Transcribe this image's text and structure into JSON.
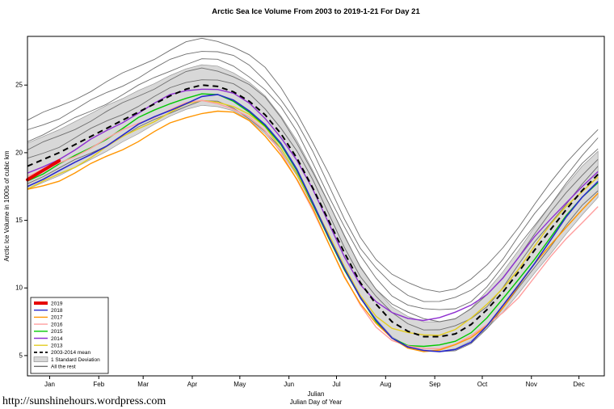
{
  "footer": {
    "url": "http://sunshinehours.wordpress.com"
  },
  "chart_data": {
    "type": "line",
    "title": "Arctic Sea Ice Volume From 2003 to 2019-1-21  For Day 21",
    "ylabel": "Arctic Ice Volume in 1000s of cubic km",
    "xlabel_top": "Julian",
    "xlabel": "Julian Day of Year",
    "xlim": [
      1,
      365
    ],
    "ylim": [
      3.5,
      28.6
    ],
    "yticks": [
      5,
      10,
      15,
      20,
      25
    ],
    "xticks": {
      "days": [
        15,
        46,
        74,
        105,
        135,
        166,
        196,
        227,
        258,
        288,
        319,
        349
      ],
      "labels": [
        "Jan",
        "Feb",
        "Mar",
        "Apr",
        "May",
        "Jun",
        "Jul",
        "Aug",
        "Sep",
        "Oct",
        "Nov",
        "Dec"
      ]
    },
    "days": [
      1,
      11,
      21,
      31,
      41,
      51,
      61,
      71,
      81,
      91,
      101,
      111,
      121,
      131,
      141,
      151,
      161,
      171,
      181,
      191,
      201,
      211,
      221,
      231,
      241,
      251,
      261,
      271,
      281,
      291,
      301,
      311,
      321,
      331,
      341,
      351,
      361
    ],
    "mean_series": {
      "name": "2003-2014 mean",
      "color": "#000000",
      "values": [
        19.0,
        19.5,
        20.0,
        20.6,
        21.2,
        21.8,
        22.4,
        23.0,
        23.6,
        24.2,
        24.7,
        25.0,
        24.9,
        24.5,
        23.8,
        22.8,
        21.4,
        19.6,
        17.4,
        15.0,
        12.6,
        10.4,
        8.8,
        7.5,
        6.8,
        6.4,
        6.4,
        6.6,
        7.3,
        8.4,
        9.7,
        11.2,
        12.8,
        14.3,
        15.8,
        17.2,
        18.4
      ]
    },
    "std_values": [
      1.7,
      1.7,
      1.7,
      1.7,
      1.7,
      1.7,
      1.6,
      1.6,
      1.5,
      1.5,
      1.5,
      1.5,
      1.5,
      1.4,
      1.4,
      1.4,
      1.3,
      1.3,
      1.3,
      1.3,
      1.2,
      1.2,
      1.1,
      1.1,
      1.1,
      1.1,
      1.1,
      1.1,
      1.2,
      1.4,
      1.5,
      1.6,
      1.7,
      1.8,
      1.8,
      1.8,
      1.7
    ],
    "band_label": "1 Standard Deviation",
    "band_color": "#D8D8D8",
    "rest_label": "All the rest",
    "rest_color": "#6E6E6E",
    "rest_series": [
      {
        "values": [
          22.4,
          22.9,
          23.4,
          24.0,
          24.6,
          25.2,
          25.8,
          26.4,
          27.0,
          27.6,
          28.1,
          28.4,
          28.3,
          27.9,
          27.2,
          26.2,
          24.8,
          23.0,
          20.8,
          18.4,
          16.0,
          13.8,
          12.2,
          11.0,
          10.3,
          9.9,
          9.8,
          10.0,
          10.6,
          11.6,
          13.0,
          14.6,
          16.2,
          17.7,
          19.2,
          20.6,
          21.8
        ]
      },
      {
        "values": [
          21.6,
          22.1,
          22.6,
          23.2,
          23.8,
          24.4,
          25.0,
          25.6,
          26.2,
          26.8,
          27.3,
          27.6,
          27.5,
          27.1,
          26.4,
          25.4,
          24.0,
          22.2,
          20.0,
          17.6,
          15.2,
          13.0,
          11.4,
          10.2,
          9.5,
          9.1,
          9.0,
          9.2,
          9.8,
          10.8,
          12.2,
          13.8,
          15.4,
          16.9,
          18.4,
          19.8,
          21.0
        ]
      },
      {
        "values": [
          20.9,
          21.4,
          21.9,
          22.5,
          23.1,
          23.7,
          24.3,
          24.9,
          25.5,
          26.1,
          26.6,
          26.9,
          26.8,
          26.4,
          25.7,
          24.7,
          23.3,
          21.5,
          19.3,
          16.9,
          14.5,
          12.3,
          10.7,
          9.5,
          8.8,
          8.4,
          8.3,
          8.5,
          9.1,
          10.1,
          11.5,
          13.1,
          14.7,
          16.2,
          17.7,
          19.1,
          20.3
        ]
      },
      {
        "values": [
          20.2,
          20.7,
          21.2,
          21.8,
          22.4,
          23.0,
          23.6,
          24.2,
          24.8,
          25.4,
          25.9,
          26.2,
          26.1,
          25.7,
          25.0,
          24.0,
          22.6,
          20.8,
          18.6,
          16.2,
          13.8,
          11.6,
          10.0,
          8.8,
          8.1,
          7.7,
          7.6,
          7.8,
          8.4,
          9.4,
          10.8,
          12.4,
          14.0,
          15.5,
          17.0,
          18.4,
          19.6
        ]
      },
      {
        "values": [
          19.5,
          20.0,
          20.5,
          21.1,
          21.7,
          22.3,
          22.9,
          23.5,
          24.1,
          24.7,
          25.2,
          25.5,
          25.4,
          25.0,
          24.3,
          23.3,
          21.9,
          20.1,
          17.9,
          15.5,
          13.1,
          10.9,
          9.3,
          8.1,
          7.4,
          7.0,
          6.9,
          7.1,
          7.7,
          8.7,
          10.1,
          11.7,
          13.3,
          14.8,
          16.3,
          17.7,
          18.9
        ]
      },
      {
        "values": [
          17.8,
          18.3,
          18.8,
          19.4,
          20.0,
          20.6,
          21.2,
          21.8,
          22.4,
          23.0,
          23.5,
          23.8,
          23.7,
          23.3,
          22.6,
          21.6,
          20.2,
          18.4,
          16.2,
          13.8,
          11.4,
          9.2,
          7.6,
          6.4,
          5.7,
          5.3,
          5.2,
          5.4,
          6.0,
          7.0,
          8.4,
          10.0,
          11.6,
          13.1,
          14.6,
          16.0,
          17.2
        ]
      }
    ],
    "year_series": [
      {
        "name": "2013",
        "color": "#E3CC1F",
        "width": 1.4,
        "values": [
          17.3,
          17.8,
          18.4,
          19.0,
          19.7,
          20.4,
          21.1,
          21.8,
          22.4,
          23.0,
          23.5,
          23.8,
          23.8,
          23.5,
          22.8,
          21.8,
          20.3,
          18.5,
          16.3,
          13.9,
          11.5,
          9.5,
          8.0,
          7.0,
          6.6,
          6.5,
          6.6,
          7.0,
          7.7,
          8.7,
          10.0,
          11.5,
          13.1,
          14.6,
          16.0,
          17.2,
          18.3
        ]
      },
      {
        "name": "2014",
        "color": "#8F2FD1",
        "width": 1.4,
        "values": [
          18.4,
          19.0,
          19.6,
          20.2,
          20.9,
          21.6,
          22.3,
          23.0,
          23.6,
          24.2,
          24.6,
          24.8,
          24.7,
          24.3,
          23.6,
          22.6,
          21.2,
          19.4,
          17.2,
          14.8,
          12.4,
          10.3,
          8.9,
          8.1,
          7.8,
          7.7,
          7.8,
          8.1,
          8.7,
          9.6,
          10.8,
          12.2,
          13.7,
          15.1,
          16.4,
          17.5,
          18.5
        ]
      },
      {
        "name": "2015",
        "color": "#00C800",
        "width": 1.4,
        "values": [
          18.0,
          18.5,
          19.1,
          19.7,
          20.4,
          21.1,
          21.8,
          22.5,
          23.1,
          23.7,
          24.1,
          24.3,
          24.2,
          23.8,
          23.1,
          22.0,
          20.5,
          18.6,
          16.3,
          13.8,
          11.3,
          9.2,
          7.5,
          6.4,
          5.8,
          5.6,
          5.7,
          6.1,
          6.8,
          7.8,
          9.1,
          10.6,
          12.2,
          13.8,
          15.3,
          16.6,
          17.8
        ]
      },
      {
        "name": "2016",
        "color": "#FF9E9E",
        "width": 1.4,
        "values": [
          18.2,
          18.7,
          19.2,
          19.8,
          20.4,
          21.0,
          21.6,
          22.2,
          22.7,
          23.2,
          23.6,
          23.8,
          23.7,
          23.3,
          22.6,
          21.5,
          20.0,
          18.1,
          15.8,
          13.2,
          10.8,
          8.8,
          7.2,
          6.1,
          5.6,
          5.5,
          5.6,
          5.9,
          6.4,
          7.2,
          8.2,
          9.4,
          10.8,
          12.2,
          13.6,
          14.9,
          16.1
        ]
      },
      {
        "name": "2017",
        "color": "#FF9500",
        "width": 1.4,
        "values": [
          17.2,
          17.6,
          18.0,
          18.5,
          19.1,
          19.7,
          20.3,
          20.9,
          21.5,
          22.1,
          22.6,
          23.0,
          23.1,
          22.9,
          22.3,
          21.3,
          19.9,
          18.0,
          15.8,
          13.3,
          10.9,
          8.9,
          7.3,
          6.2,
          5.6,
          5.4,
          5.4,
          5.7,
          6.3,
          7.3,
          8.6,
          10.1,
          11.7,
          13.2,
          14.6,
          15.8,
          16.9
        ]
      },
      {
        "name": "2018",
        "color": "#2929CC",
        "width": 1.6,
        "values": [
          17.6,
          18.1,
          18.6,
          19.2,
          19.9,
          20.6,
          21.3,
          22.0,
          22.6,
          23.2,
          23.7,
          24.1,
          24.2,
          23.9,
          23.2,
          22.1,
          20.6,
          18.7,
          16.4,
          13.9,
          11.4,
          9.2,
          7.6,
          6.4,
          5.7,
          5.3,
          5.2,
          5.5,
          6.1,
          7.2,
          8.6,
          10.2,
          11.9,
          13.6,
          15.2,
          16.6,
          17.9
        ]
      },
      {
        "name": "2019",
        "color": "#E60000",
        "width": 4,
        "days": [
          1,
          11,
          21
        ],
        "values": [
          18.0,
          18.7,
          19.4
        ]
      }
    ],
    "legend": {
      "entries": [
        {
          "label": "2019",
          "color": "#E60000",
          "style": "thick"
        },
        {
          "label": "2018",
          "color": "#2929CC",
          "style": "line"
        },
        {
          "label": "2017",
          "color": "#FF9500",
          "style": "line"
        },
        {
          "label": "2016",
          "color": "#FF9E9E",
          "style": "line"
        },
        {
          "label": "2015",
          "color": "#00C800",
          "style": "line"
        },
        {
          "label": "2014",
          "color": "#8F2FD1",
          "style": "line"
        },
        {
          "label": "2013",
          "color": "#E3CC1F",
          "style": "line"
        },
        {
          "label": "2003-2014 mean",
          "color": "#000000",
          "style": "dashed"
        },
        {
          "label": "1 Standard Deviation",
          "color": "#D8D8D8",
          "style": "box"
        },
        {
          "label": "All the rest",
          "color": "#6E6E6E",
          "style": "line"
        }
      ]
    }
  }
}
